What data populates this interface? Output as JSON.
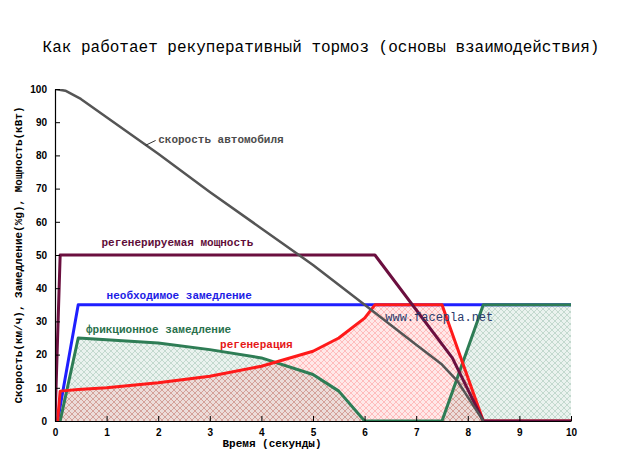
{
  "chart_data": {
    "type": "line",
    "title": "Как работает рекуперативный тормоз (основы взаимодействия)",
    "xlabel": "Время (секунды)",
    "ylabel": "Скорость(км/ч), Замедление(%g), Мощность(кВт)",
    "xlim": [
      0,
      10
    ],
    "xticks": [
      0,
      1,
      2,
      3,
      4,
      5,
      6,
      7,
      8,
      9,
      10
    ],
    "ylim": [
      0,
      100
    ],
    "yticks": [
      0,
      10,
      20,
      30,
      40,
      50,
      60,
      70,
      80,
      90,
      100
    ],
    "grid": false,
    "series": [
      {
        "name": "необходимое замедление",
        "type": "line",
        "color": "#1f1fff",
        "x": [
          0.05,
          0.45,
          10
        ],
        "values": [
          0,
          35,
          35
        ]
      },
      {
        "name": "фрикционное замедление",
        "type": "area",
        "color": "#2e7d55",
        "x": [
          0.1,
          0.45,
          1,
          2,
          3,
          4,
          5,
          5.5,
          6,
          7.5,
          8.3,
          10
        ],
        "values": [
          0,
          25,
          24.5,
          23.5,
          21.5,
          19,
          14,
          9,
          0,
          0,
          35,
          35
        ]
      },
      {
        "name": "регенерация",
        "type": "area",
        "color": "#ff1a1a",
        "x": [
          0.05,
          0.1,
          0.45,
          1,
          2,
          3,
          4,
          5,
          5.5,
          6,
          6.2,
          7.5,
          8.3,
          10
        ],
        "values": [
          0,
          9,
          9.5,
          10,
          11.5,
          13.5,
          16.5,
          21,
          25,
          31,
          35,
          35,
          0,
          0
        ]
      },
      {
        "name": "регенерируемая мощность",
        "type": "line",
        "color": "#6b0f3f",
        "x": [
          0,
          0.1,
          6.2,
          7.7,
          8.3,
          10
        ],
        "values": [
          0,
          50,
          50,
          19,
          0,
          0
        ]
      },
      {
        "name": "скорость автомобиля",
        "type": "line",
        "color": "#555555",
        "x": [
          0,
          0.2,
          0.5,
          1,
          2,
          3,
          4,
          5,
          6,
          6.5,
          7,
          7.5,
          7.8,
          8.3
        ],
        "values": [
          100,
          99.5,
          97,
          91.5,
          80.5,
          69,
          58,
          47,
          35,
          29,
          23,
          17,
          12,
          0
        ]
      }
    ],
    "annotations": [
      {
        "text": "www.facepla.net"
      }
    ]
  }
}
